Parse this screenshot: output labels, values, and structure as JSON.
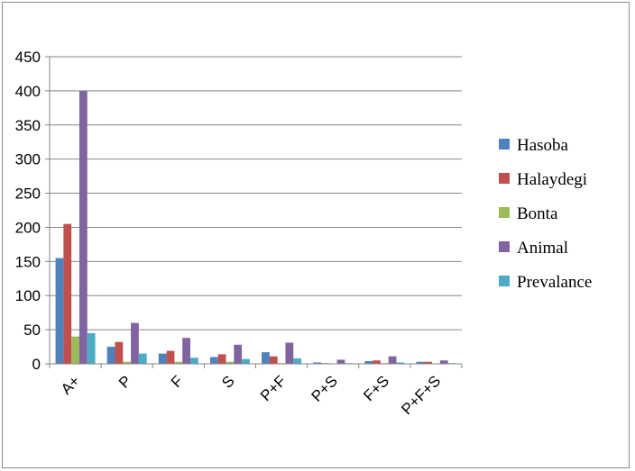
{
  "chart_data": {
    "type": "bar",
    "categories": [
      "A+",
      "P",
      "F",
      "S",
      "P+F",
      "P+S",
      "F+S",
      "P+F+S"
    ],
    "ylim": [
      0,
      450
    ],
    "yticks": [
      0,
      50,
      100,
      150,
      200,
      250,
      300,
      350,
      400,
      450
    ],
    "grid": true,
    "legend_position": "right",
    "series": [
      {
        "name": "Hasoba",
        "color": "#4f81bd",
        "values": [
          155,
          25,
          15,
          10,
          17,
          2,
          4,
          3
        ]
      },
      {
        "name": "Halaydegi",
        "color": "#c0504d",
        "values": [
          205,
          32,
          19,
          14,
          11,
          1,
          5,
          3
        ]
      },
      {
        "name": "Bonta",
        "color": "#9bbb59",
        "values": [
          40,
          3,
          3,
          3,
          1,
          0,
          1,
          0
        ]
      },
      {
        "name": "Animal",
        "color": "#8064a2",
        "values": [
          400,
          60,
          38,
          28,
          31,
          6,
          11,
          5
        ]
      },
      {
        "name": "Prevalance",
        "color": "#4bacc6",
        "values": [
          45,
          15,
          9,
          7,
          8,
          1,
          2,
          1
        ]
      }
    ]
  }
}
